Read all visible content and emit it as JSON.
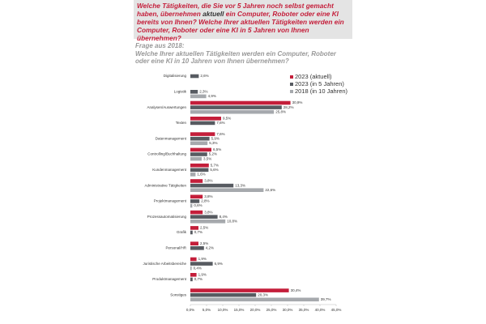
{
  "chart_data": {
    "type": "hbar",
    "title": {
      "before": "Welche Tätigkeiten, die Sie vor 5 Jahren noch selbst gemacht haben, übernehmen",
      "emphasis": "aktuell",
      "after": "ein Computer, Roboter oder eine KI bereits von Ihnen? Welche Ihrer aktuellen Tätigkeiten werden ein Computer, Roboter oder eine KI in 5 Jahren von Ihnen übernehmen?"
    },
    "subtitle_label": "Frage aus 2018:",
    "subtitle": "Welche Ihrer aktuellen Tätigkeiten werden ein Computer, Roboter oder eine KI in 10 Jahren von Ihnen übernehmen?",
    "categories": [
      "Digitalisierung",
      "Logistik",
      "Analysen/Auswertungen",
      "Texten",
      "Datenmanagement",
      "Controlling/Buchhaltung",
      "Kundenmanagement",
      "Administrative Tätigkeiten",
      "Projektmanagement",
      "Prozessautomatisierung",
      "Grafik",
      "Personal/HR",
      "Juristische Arbeitsbereiche",
      "Produktmanagement",
      "Sonstiges"
    ],
    "series": [
      {
        "name": "2023 (aktuell)",
        "color": "#c41e3a",
        "values": [
          null,
          null,
          30.9,
          9.5,
          7.6,
          6.5,
          5.7,
          3.8,
          3.8,
          3.8,
          2.5,
          2.5,
          1.9,
          1.9,
          30.4
        ],
        "value_labels": [
          null,
          null,
          "30,9%",
          "9,5%",
          "7,6%",
          "6,5%",
          "5,7%",
          "3,8%",
          "3,8%",
          "3,8%",
          "2,5%",
          "2,5%",
          "1,9%",
          "1,9%",
          "30,4%"
        ]
      },
      {
        "name": "2023 (in 5 Jahren)",
        "color": "#575b61",
        "values": [
          2.6,
          2.3,
          28.2,
          7.6,
          5.9,
          5.2,
          5.6,
          13.3,
          2.8,
          8.4,
          0.7,
          4.2,
          6.9,
          0.7,
          20.3
        ],
        "value_labels": [
          "2,6%",
          "2,3%",
          "28,2%",
          "7,6%",
          "5,9%",
          "5,2%",
          "5,6%",
          "13,3%",
          "2,8%",
          "8,4%",
          "0,7%",
          "4,2%",
          "6,9%",
          "0,7%",
          "20,3%"
        ]
      },
      {
        "name": "2018 (in 10 Jahren)",
        "color": "#a6a9ad",
        "values": [
          null,
          4.9,
          25.8,
          null,
          5.3,
          3.5,
          1.6,
          22.6,
          0.6,
          10.8,
          null,
          null,
          0.4,
          null,
          39.7
        ],
        "value_labels": [
          null,
          "4,9%",
          "25,8%",
          null,
          "5,3%",
          "3,5%",
          "1,6%",
          "22,6%",
          "0,6%",
          "10,8%",
          null,
          null,
          "0,4%",
          null,
          "39,7%"
        ]
      }
    ],
    "xlim": [
      0,
      45
    ],
    "xticks": [
      {
        "value": 0,
        "label": "0,0%"
      },
      {
        "value": 5,
        "label": "5,0%"
      },
      {
        "value": 10,
        "label": "10,0%"
      },
      {
        "value": 15,
        "label": "15,0%"
      },
      {
        "value": 20,
        "label": "20,0%"
      },
      {
        "value": 25,
        "label": "25,0%"
      },
      {
        "value": 30,
        "label": "30,0%"
      },
      {
        "value": 35,
        "label": "35,0%"
      },
      {
        "value": 40,
        "label": "40,0%"
      },
      {
        "value": 45,
        "label": "45,0%"
      }
    ],
    "legend": "upper right"
  }
}
